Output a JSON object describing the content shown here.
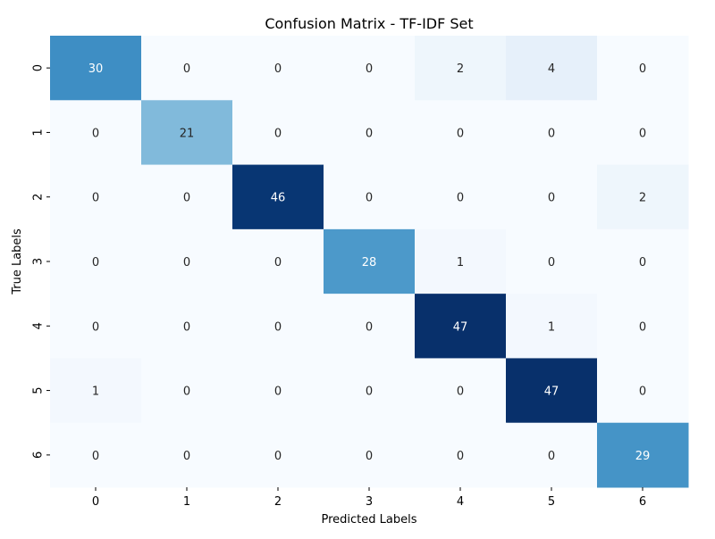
{
  "chart_data": {
    "type": "heatmap",
    "title": "Confusion Matrix - TF-IDF Set",
    "xlabel": "Predicted Labels",
    "ylabel": "True Labels",
    "x_ticks": [
      "0",
      "1",
      "2",
      "3",
      "4",
      "5",
      "6"
    ],
    "y_ticks": [
      "0",
      "1",
      "2",
      "3",
      "4",
      "5",
      "6"
    ],
    "colormap": "Blues",
    "value_range": [
      0,
      47
    ],
    "colorbar": false,
    "matrix": [
      [
        30,
        0,
        0,
        0,
        2,
        4,
        0
      ],
      [
        0,
        21,
        0,
        0,
        0,
        0,
        0
      ],
      [
        0,
        0,
        46,
        0,
        0,
        0,
        2
      ],
      [
        0,
        0,
        0,
        28,
        1,
        0,
        0
      ],
      [
        0,
        0,
        0,
        0,
        47,
        1,
        0
      ],
      [
        1,
        0,
        0,
        0,
        0,
        47,
        0
      ],
      [
        0,
        0,
        0,
        0,
        0,
        0,
        29
      ]
    ]
  }
}
